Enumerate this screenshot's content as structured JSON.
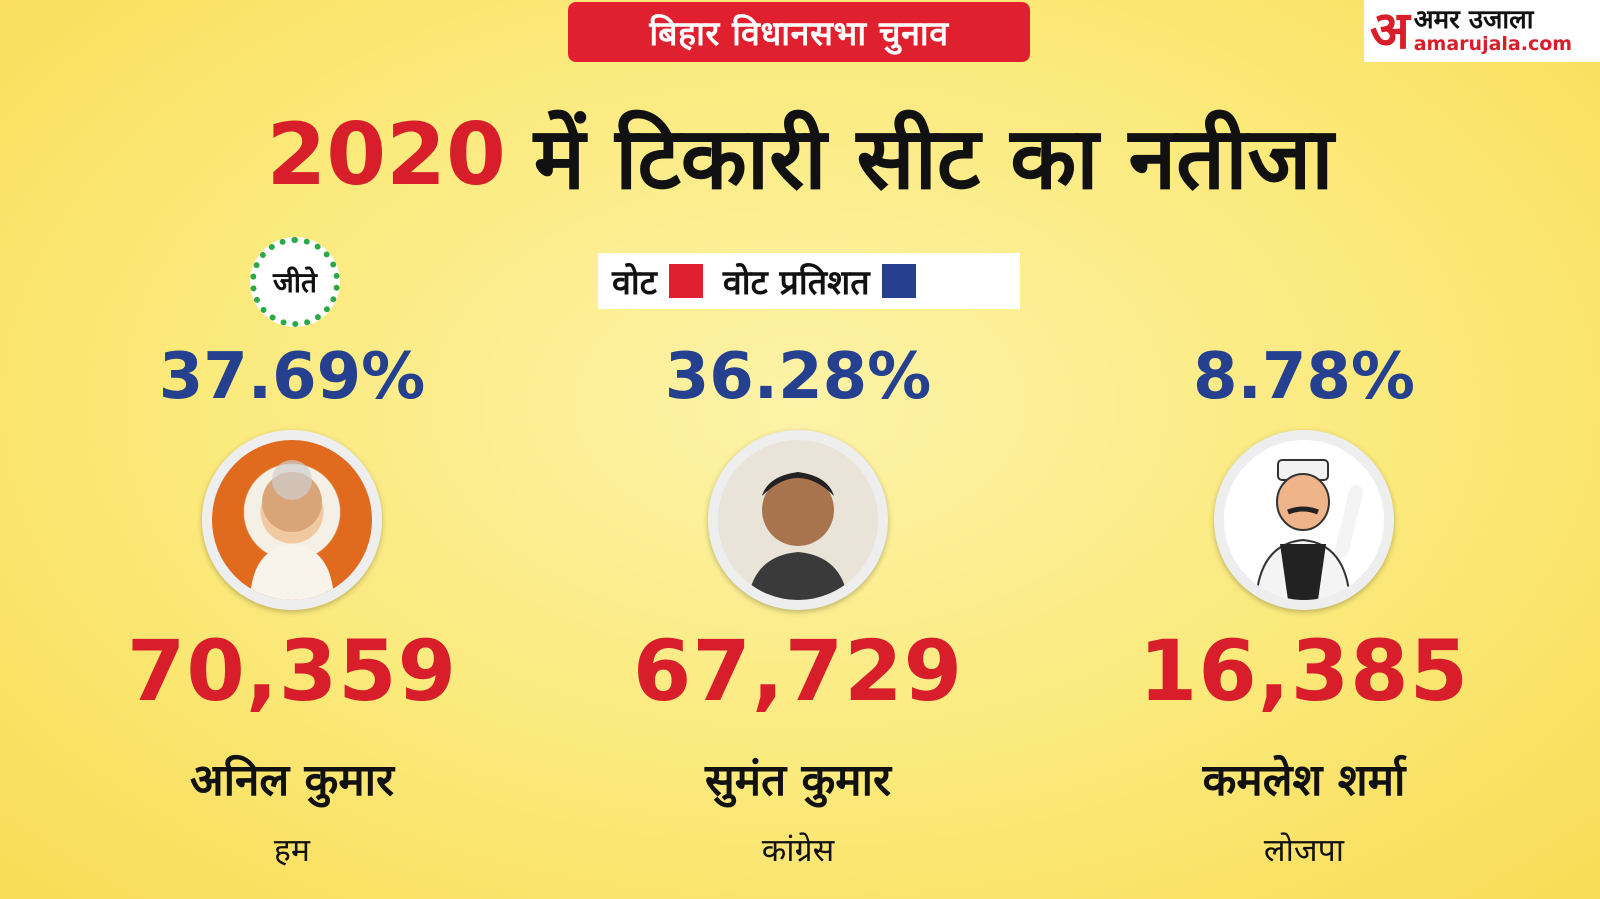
{
  "header": {
    "badge": "बिहार विधानसभा चुनाव",
    "logo_mark": "अ",
    "logo_hindi": "अमर उजाला",
    "logo_url": "amarujala.com"
  },
  "title": {
    "year": "2020",
    "text": "में  टिकारी सीट का नतीजा"
  },
  "legend": {
    "votes_label": "वोट",
    "percent_label": "वोट प्रतिशत",
    "votes_color": "#e0202e",
    "percent_color": "#24408e"
  },
  "winner_label": "जीते",
  "candidates": [
    {
      "percent": "37.69%",
      "votes": "70,359",
      "name": "अनिल कुमार",
      "party": "हम"
    },
    {
      "percent": "36.28%",
      "votes": "67,729",
      "name": "सुमंत कुमार",
      "party": "कांग्रेस"
    },
    {
      "percent": "8.78%",
      "votes": "16,385",
      "name": "कमलेश शर्मा",
      "party": "लोजपा"
    }
  ]
}
